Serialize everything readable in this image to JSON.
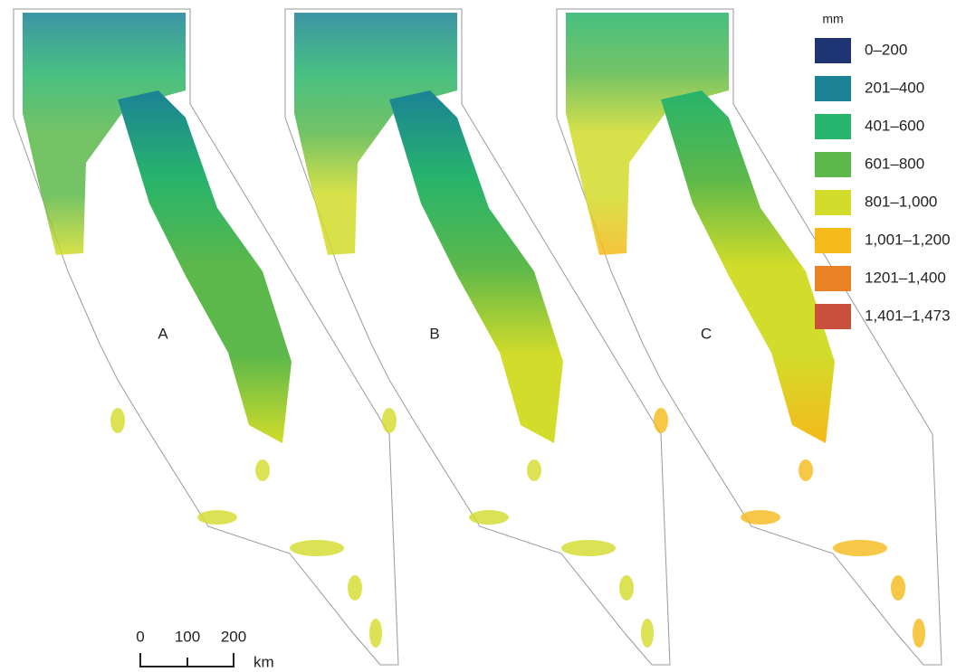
{
  "panels": [
    {
      "label": "A"
    },
    {
      "label": "B"
    },
    {
      "label": "C"
    }
  ],
  "legend": {
    "title": "mm",
    "items": [
      {
        "label": "0–200",
        "color": "#1f3573"
      },
      {
        "label": "201–400",
        "color": "#1b8296"
      },
      {
        "label": "401–600",
        "color": "#27b46c"
      },
      {
        "label": "601–800",
        "color": "#5cb84a"
      },
      {
        "label": "801–1,000",
        "color": "#d2dc2a"
      },
      {
        "label": "1,001–1,200",
        "color": "#f5b91a"
      },
      {
        "label": "1201–1,400",
        "color": "#ea8124"
      },
      {
        "label": "1,401–1,473",
        "color": "#c8503c"
      }
    ]
  },
  "scale_bar": {
    "ticks": [
      "0",
      "100",
      "200"
    ],
    "unit": "km"
  }
}
